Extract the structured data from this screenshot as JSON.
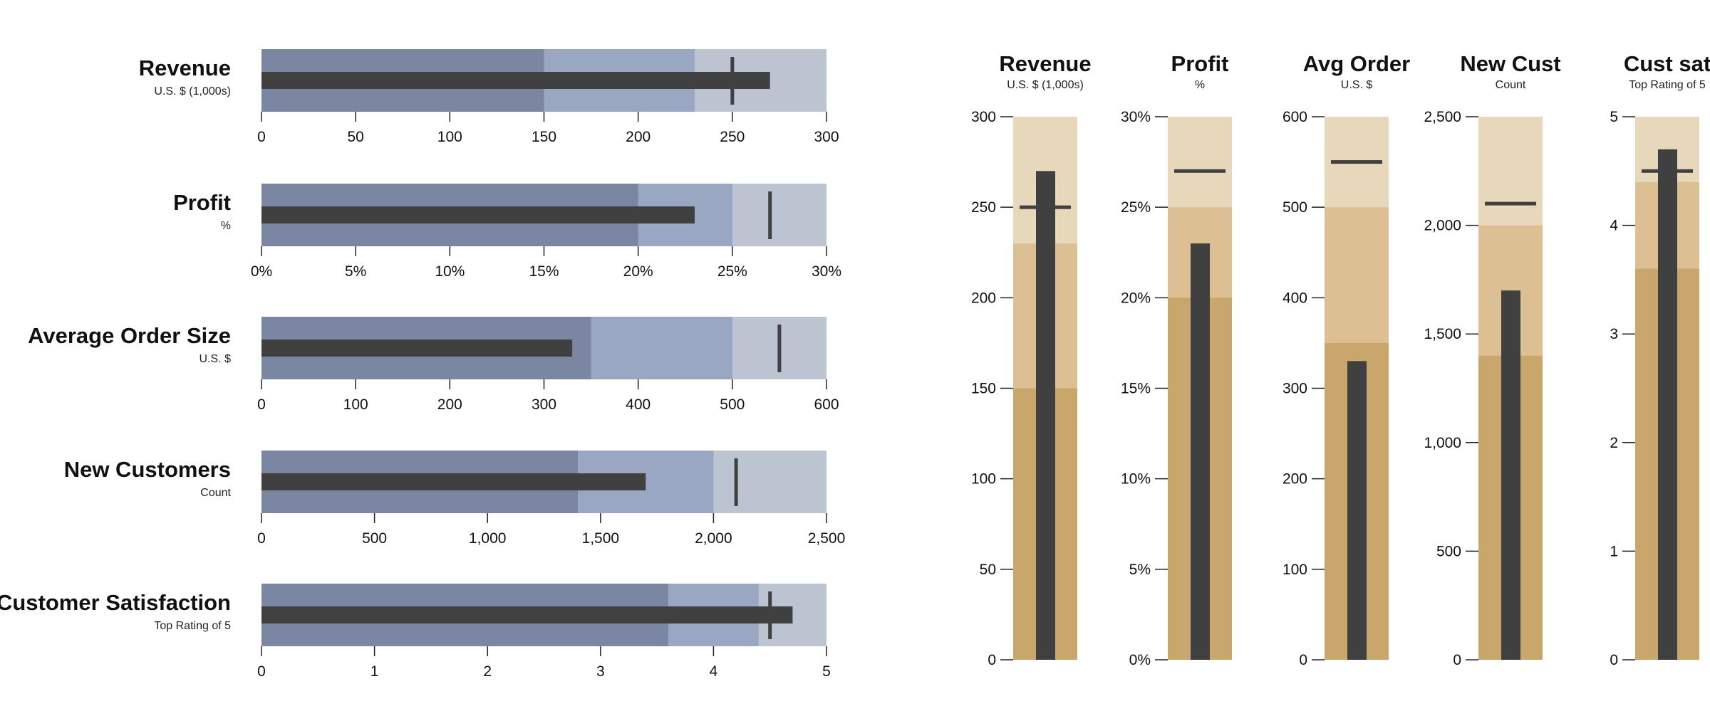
{
  "chart_data": [
    {
      "type": "bullet",
      "orientation": "horizontal",
      "colors": {
        "ranges": [
          "#7a86a2",
          "#99a7c2",
          "#bcc4d2"
        ],
        "measure": "#404040",
        "marker": "#404040"
      },
      "items": [
        {
          "title": "Revenue",
          "subtitle": "U.S. $ (1,000s)",
          "ranges": [
            150,
            230,
            300
          ],
          "measure": 270,
          "marker": 250,
          "ticks": [
            "0",
            "50",
            "100",
            "150",
            "200",
            "250",
            "300"
          ],
          "tick_values": [
            0,
            50,
            100,
            150,
            200,
            250,
            300
          ],
          "max": 300
        },
        {
          "title": "Profit",
          "subtitle": "%",
          "ranges": [
            20,
            25,
            30
          ],
          "measure": 23,
          "marker": 27,
          "ticks": [
            "0%",
            "5%",
            "10%",
            "15%",
            "20%",
            "25%",
            "30%"
          ],
          "tick_values": [
            0,
            5,
            10,
            15,
            20,
            25,
            30
          ],
          "max": 30
        },
        {
          "title": "Average Order Size",
          "subtitle": "U.S. $",
          "ranges": [
            350,
            500,
            600
          ],
          "measure": 330,
          "marker": 550,
          "ticks": [
            "0",
            "100",
            "200",
            "300",
            "400",
            "500",
            "600"
          ],
          "tick_values": [
            0,
            100,
            200,
            300,
            400,
            500,
            600
          ],
          "max": 600
        },
        {
          "title": "New Customers",
          "subtitle": "Count",
          "ranges": [
            1400,
            2000,
            2500
          ],
          "measure": 1700,
          "marker": 2100,
          "ticks": [
            "0",
            "500",
            "1,000",
            "1,500",
            "2,000",
            "2,500"
          ],
          "tick_values": [
            0,
            500,
            1000,
            1500,
            2000,
            2500
          ],
          "max": 2500
        },
        {
          "title": "Customer Satisfaction",
          "subtitle": "Top Rating of 5",
          "ranges": [
            3.6,
            4.4,
            5
          ],
          "measure": 4.7,
          "marker": 4.5,
          "ticks": [
            "0",
            "1",
            "2",
            "3",
            "4",
            "5"
          ],
          "tick_values": [
            0,
            1,
            2,
            3,
            4,
            5
          ],
          "max": 5
        }
      ]
    },
    {
      "type": "bullet",
      "orientation": "vertical",
      "colors": {
        "ranges": [
          "#c9a66b",
          "#dcc094",
          "#e8d8bb"
        ],
        "measure": "#404040",
        "marker": "#404040"
      },
      "items": [
        {
          "title": "Revenue",
          "subtitle": "U.S. $ (1,000s)",
          "ranges": [
            150,
            230,
            300
          ],
          "measure": 270,
          "marker": 250,
          "ticks": [
            "0",
            "50",
            "100",
            "150",
            "200",
            "250",
            "300"
          ],
          "tick_values": [
            0,
            50,
            100,
            150,
            200,
            250,
            300
          ],
          "max": 300
        },
        {
          "title": "Profit",
          "subtitle": "%",
          "ranges": [
            20,
            25,
            30
          ],
          "measure": 23,
          "marker": 27,
          "ticks": [
            "0%",
            "5%",
            "10%",
            "15%",
            "20%",
            "25%",
            "30%"
          ],
          "tick_values": [
            0,
            5,
            10,
            15,
            20,
            25,
            30
          ],
          "max": 30
        },
        {
          "title": "Avg Order",
          "subtitle": "U.S. $",
          "ranges": [
            350,
            500,
            600
          ],
          "measure": 330,
          "marker": 550,
          "ticks": [
            "0",
            "100",
            "200",
            "300",
            "400",
            "500",
            "600"
          ],
          "tick_values": [
            0,
            100,
            200,
            300,
            400,
            500,
            600
          ],
          "max": 600
        },
        {
          "title": "New Cust",
          "subtitle": "Count",
          "ranges": [
            1400,
            2000,
            2500
          ],
          "measure": 1700,
          "marker": 2100,
          "ticks": [
            "0",
            "500",
            "1,000",
            "1,500",
            "2,000",
            "2,500"
          ],
          "tick_values": [
            0,
            500,
            1000,
            1500,
            2000,
            2500
          ],
          "max": 2500
        },
        {
          "title": "Cust sat",
          "subtitle": "Top Rating of 5",
          "ranges": [
            3.6,
            4.4,
            5
          ],
          "measure": 4.7,
          "marker": 4.5,
          "ticks": [
            "0",
            "1",
            "2",
            "3",
            "4",
            "5"
          ],
          "tick_values": [
            0,
            1,
            2,
            3,
            4,
            5
          ],
          "max": 5
        }
      ]
    }
  ]
}
